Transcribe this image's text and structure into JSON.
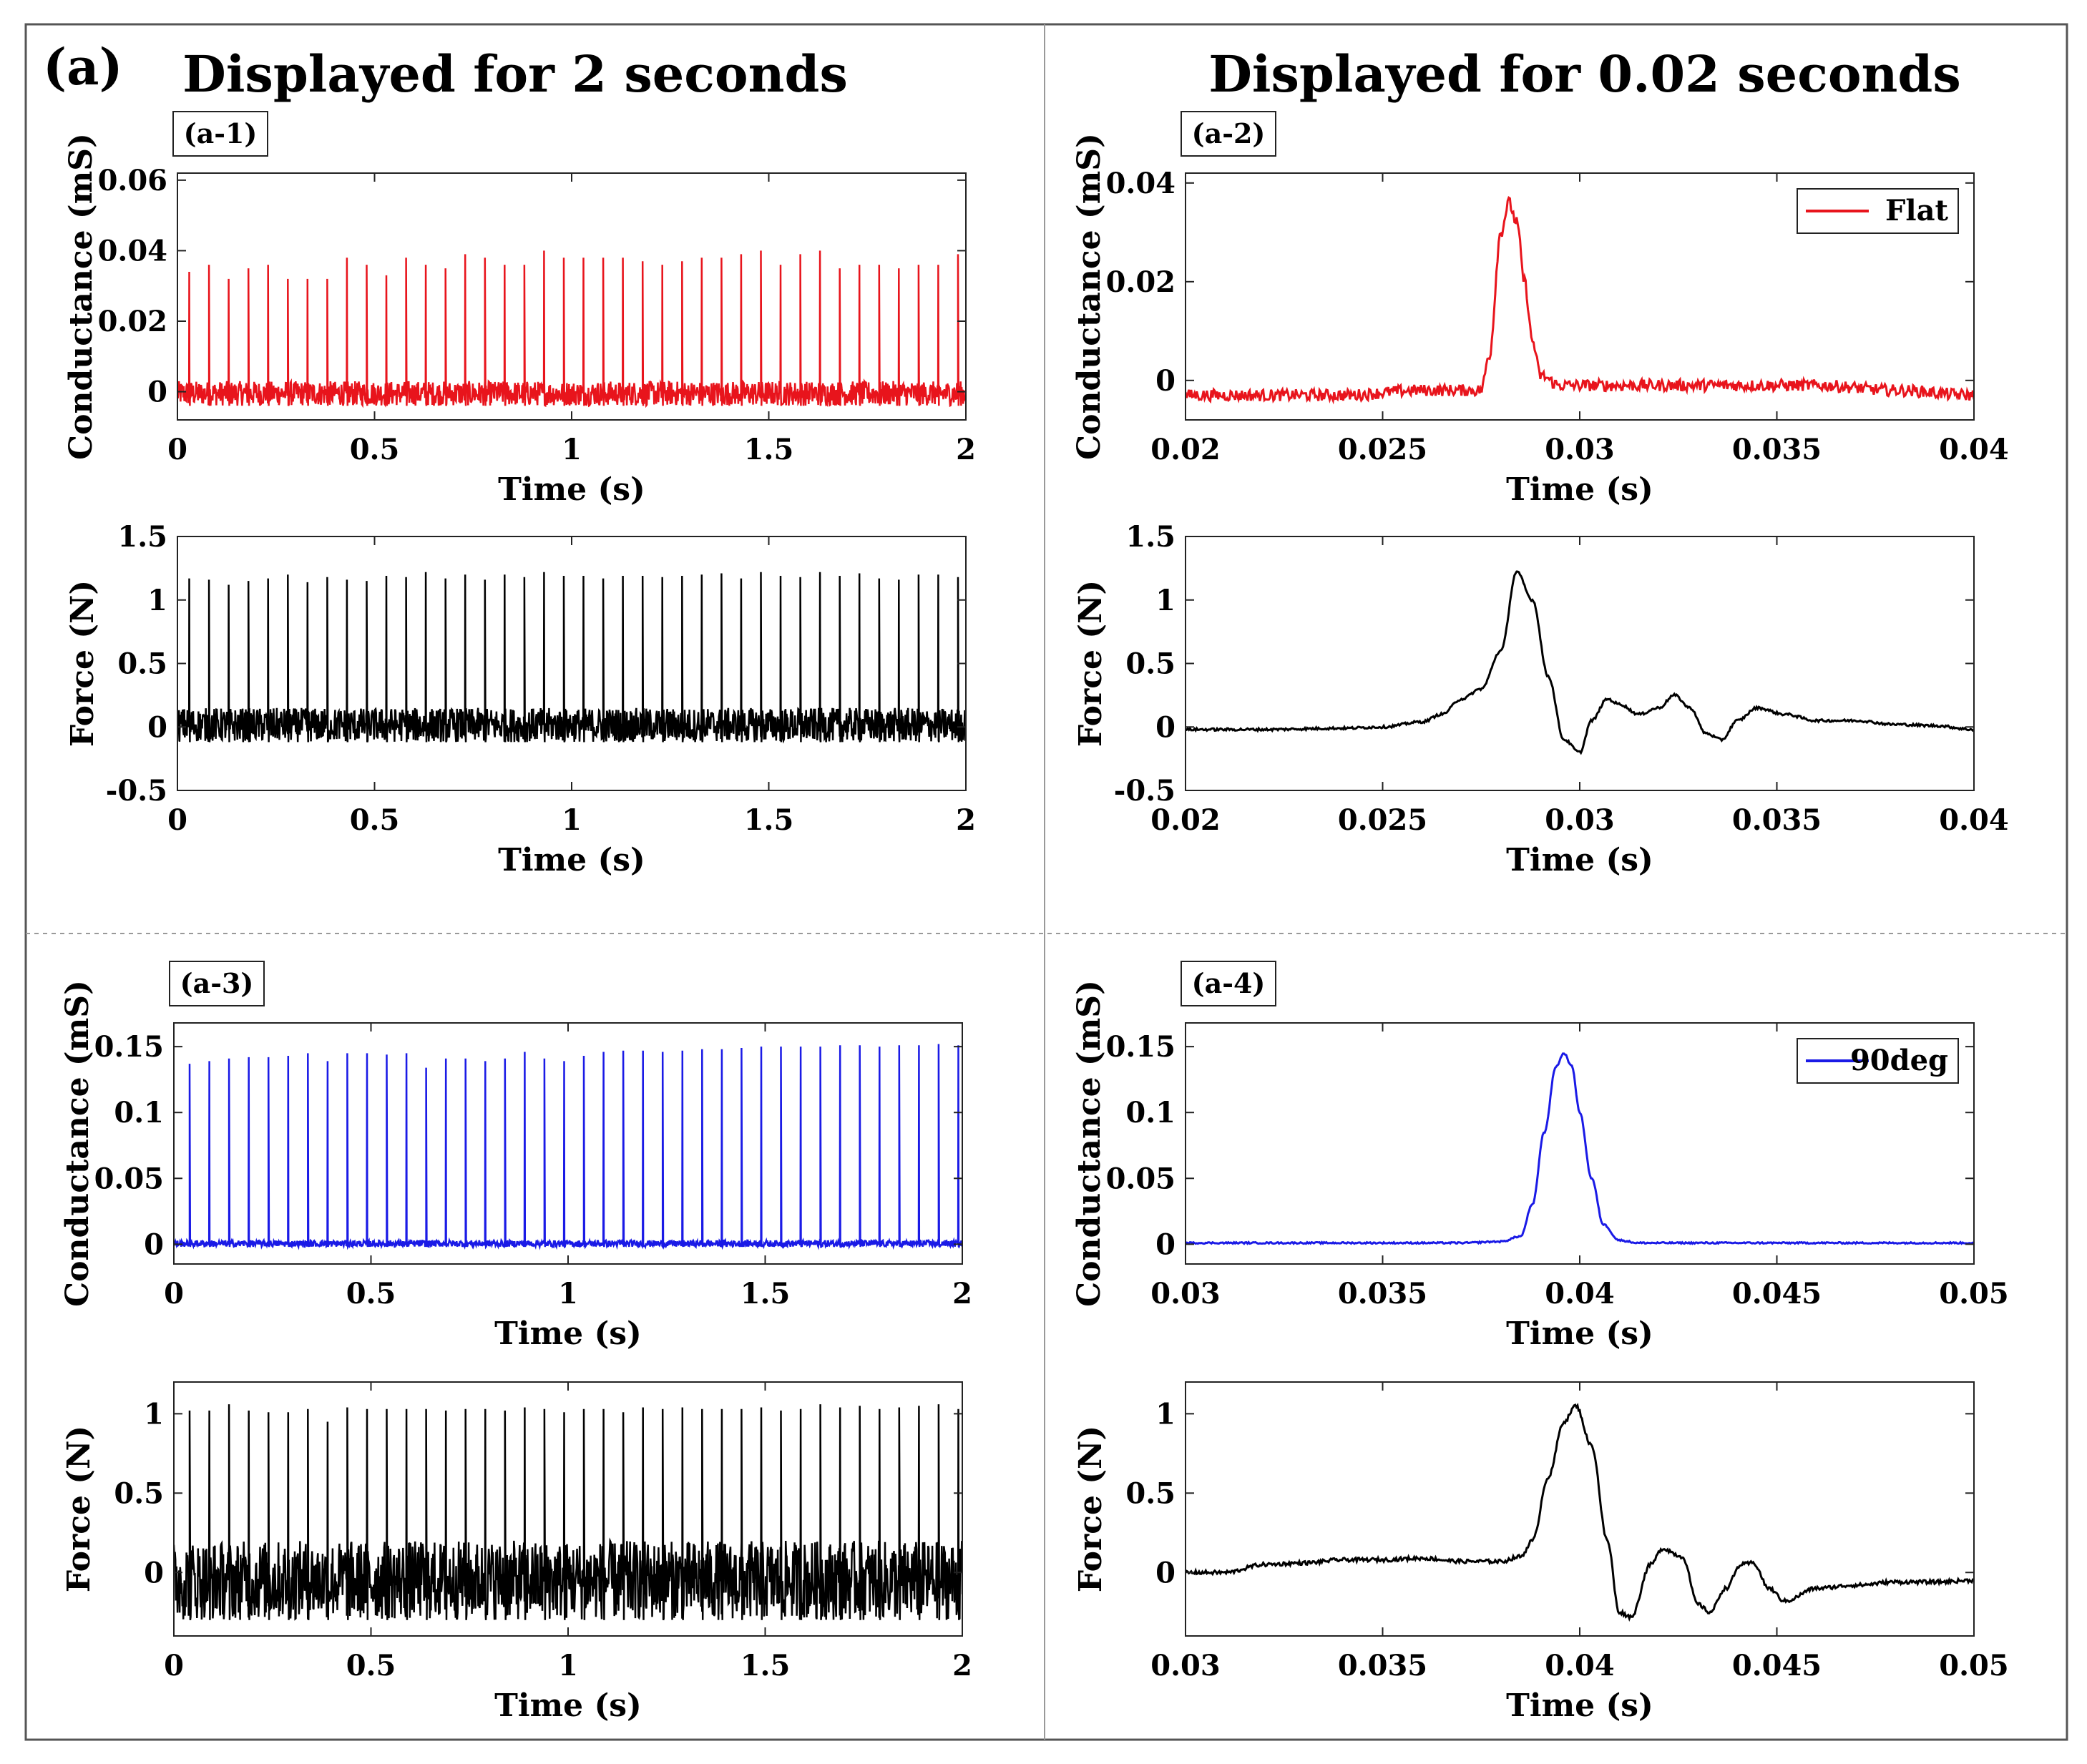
{
  "figure": {
    "panel_label": "(a)",
    "col_titles": [
      "Displayed for 2 seconds",
      "Displayed for 0.02 seconds"
    ],
    "colors": {
      "red": "#e8141c",
      "blue": "#1a1ae6",
      "black": "#000000",
      "frame": "#555555",
      "divider": "#999999"
    }
  },
  "chart_data": [
    {
      "id": "a1-cond",
      "tag": "(a-1)",
      "type": "line",
      "color": "#e8141c",
      "xlabel": "Time (s)",
      "ylabel": "Conductance (mS)",
      "xlim": [
        0,
        2
      ],
      "ylim": [
        -0.008,
        0.062
      ],
      "xticks": [
        0,
        0.5,
        1,
        1.5,
        2
      ],
      "xtick_labels": [
        "0",
        "0.5",
        "1",
        "1.5",
        "2"
      ],
      "yticks": [
        0,
        0.02,
        0.04,
        0.06
      ],
      "ytick_labels": [
        "0",
        "0.02",
        "0.04",
        "0.06"
      ],
      "noise_band": [
        -0.004,
        0.003
      ],
      "spike_times": [
        0.03,
        0.08,
        0.13,
        0.18,
        0.23,
        0.28,
        0.33,
        0.38,
        0.43,
        0.48,
        0.53,
        0.58,
        0.63,
        0.68,
        0.73,
        0.78,
        0.83,
        0.88,
        0.93,
        0.98,
        1.03,
        1.08,
        1.13,
        1.18,
        1.23,
        1.28,
        1.33,
        1.38,
        1.43,
        1.48,
        1.53,
        1.58,
        1.63,
        1.68,
        1.73,
        1.78,
        1.83,
        1.88,
        1.93,
        1.98
      ],
      "spike_peaks": [
        0.034,
        0.036,
        0.032,
        0.035,
        0.036,
        0.032,
        0.032,
        0.032,
        0.038,
        0.036,
        0.033,
        0.038,
        0.036,
        0.035,
        0.039,
        0.038,
        0.036,
        0.036,
        0.04,
        0.038,
        0.038,
        0.038,
        0.038,
        0.037,
        0.036,
        0.037,
        0.038,
        0.038,
        0.039,
        0.04,
        0.036,
        0.039,
        0.04,
        0.035,
        0.036,
        0.036,
        0.035,
        0.036,
        0.036,
        0.039
      ]
    },
    {
      "id": "a2-cond",
      "tag": "(a-2)",
      "type": "line",
      "color": "#e8141c",
      "xlabel": "Time (s)",
      "ylabel": "Conductance (mS)",
      "xlim": [
        0.02,
        0.04
      ],
      "ylim": [
        -0.008,
        0.042
      ],
      "xticks": [
        0.02,
        0.025,
        0.03,
        0.035,
        0.04
      ],
      "xtick_labels": [
        "0.02",
        "0.025",
        "0.03",
        "0.035",
        "0.04"
      ],
      "yticks": [
        0,
        0.02,
        0.04
      ],
      "ytick_labels": [
        "0",
        "0.02",
        "0.04"
      ],
      "legend": "Flat",
      "legend_position": "top-right",
      "curve": {
        "x": [
          0.02,
          0.022,
          0.024,
          0.026,
          0.027,
          0.0275,
          0.0277,
          0.028,
          0.0282,
          0.0284,
          0.0286,
          0.0288,
          0.029,
          0.0295,
          0.03,
          0.032,
          0.034,
          0.036,
          0.038,
          0.04
        ],
        "y": [
          -0.003,
          -0.003,
          -0.003,
          -0.002,
          -0.002,
          -0.002,
          0.005,
          0.03,
          0.036,
          0.032,
          0.02,
          0.008,
          0.001,
          -0.001,
          -0.001,
          -0.001,
          -0.001,
          -0.001,
          -0.002,
          -0.003
        ]
      },
      "noise": 0.0012
    },
    {
      "id": "a1-force",
      "tag": "",
      "type": "line",
      "color": "#000000",
      "xlabel": "Time (s)",
      "ylabel": "Force (N)",
      "xlim": [
        0,
        2
      ],
      "ylim": [
        -0.5,
        1.5
      ],
      "xticks": [
        0,
        0.5,
        1,
        1.5,
        2
      ],
      "xtick_labels": [
        "0",
        "0.5",
        "1",
        "1.5",
        "2"
      ],
      "yticks": [
        -0.5,
        0,
        0.5,
        1,
        1.5
      ],
      "ytick_labels": [
        "-0.5",
        "0",
        "0.5",
        "1",
        "1.5"
      ],
      "noise_band": [
        -0.12,
        0.15
      ],
      "spike_times": [
        0.03,
        0.08,
        0.13,
        0.18,
        0.23,
        0.28,
        0.33,
        0.38,
        0.43,
        0.48,
        0.53,
        0.58,
        0.63,
        0.68,
        0.73,
        0.78,
        0.83,
        0.88,
        0.93,
        0.98,
        1.03,
        1.08,
        1.13,
        1.18,
        1.23,
        1.28,
        1.33,
        1.38,
        1.43,
        1.48,
        1.53,
        1.58,
        1.63,
        1.68,
        1.73,
        1.78,
        1.83,
        1.88,
        1.93,
        1.98
      ],
      "spike_peaks": [
        1.17,
        1.16,
        1.12,
        1.15,
        1.17,
        1.2,
        1.14,
        1.18,
        1.16,
        1.15,
        1.19,
        1.18,
        1.22,
        1.17,
        1.2,
        1.16,
        1.2,
        1.18,
        1.22,
        1.19,
        1.19,
        1.17,
        1.19,
        1.19,
        1.18,
        1.19,
        1.2,
        1.21,
        1.17,
        1.22,
        1.19,
        1.18,
        1.22,
        1.19,
        1.21,
        1.17,
        1.16,
        1.2,
        1.2,
        1.18
      ]
    },
    {
      "id": "a2-force",
      "tag": "",
      "type": "line",
      "color": "#000000",
      "xlabel": "Time (s)",
      "ylabel": "Force (N)",
      "xlim": [
        0.02,
        0.04
      ],
      "ylim": [
        -0.5,
        1.5
      ],
      "xticks": [
        0.02,
        0.025,
        0.03,
        0.035,
        0.04
      ],
      "xtick_labels": [
        "0.02",
        "0.025",
        "0.03",
        "0.035",
        "0.04"
      ],
      "yticks": [
        -0.5,
        0,
        0.5,
        1,
        1.5
      ],
      "ytick_labels": [
        "-0.5",
        "0",
        "0.5",
        "1",
        "1.5"
      ],
      "curve": {
        "x": [
          0.02,
          0.022,
          0.024,
          0.025,
          0.026,
          0.0265,
          0.027,
          0.0275,
          0.028,
          0.0284,
          0.0288,
          0.0292,
          0.0296,
          0.03,
          0.0303,
          0.0307,
          0.031,
          0.0315,
          0.032,
          0.0324,
          0.0328,
          0.0332,
          0.0336,
          0.034,
          0.0345,
          0.0352,
          0.036,
          0.037,
          0.038,
          0.039,
          0.04
        ],
        "y": [
          -0.02,
          -0.02,
          -0.01,
          0.0,
          0.04,
          0.1,
          0.22,
          0.3,
          0.6,
          1.22,
          1.0,
          0.4,
          -0.1,
          -0.2,
          0.05,
          0.22,
          0.18,
          0.1,
          0.15,
          0.25,
          0.15,
          -0.05,
          -0.1,
          0.05,
          0.15,
          0.1,
          0.05,
          0.05,
          0.02,
          0.01,
          -0.02
        ]
      },
      "noise": 0.01
    },
    {
      "id": "a3-cond",
      "tag": "(a-3)",
      "type": "line",
      "color": "#1a1ae6",
      "xlabel": "Time (s)",
      "ylabel": "Conductance (mS)",
      "xlim": [
        0,
        2
      ],
      "ylim": [
        -0.015,
        0.168
      ],
      "xticks": [
        0,
        0.5,
        1,
        1.5,
        2
      ],
      "xtick_labels": [
        "0",
        "0.5",
        "1",
        "1.5",
        "2"
      ],
      "yticks": [
        0,
        0.05,
        0.1,
        0.15
      ],
      "ytick_labels": [
        "0",
        "0.05",
        "0.1",
        "0.15"
      ],
      "noise_band": [
        -0.002,
        0.003
      ],
      "spike_times": [
        0.04,
        0.09,
        0.14,
        0.19,
        0.24,
        0.29,
        0.34,
        0.39,
        0.44,
        0.49,
        0.54,
        0.59,
        0.64,
        0.69,
        0.74,
        0.79,
        0.84,
        0.89,
        0.94,
        0.99,
        1.04,
        1.09,
        1.14,
        1.19,
        1.24,
        1.29,
        1.34,
        1.39,
        1.44,
        1.49,
        1.54,
        1.59,
        1.64,
        1.69,
        1.74,
        1.79,
        1.84,
        1.89,
        1.94,
        1.99
      ],
      "spike_peaks": [
        0.137,
        0.139,
        0.141,
        0.142,
        0.142,
        0.143,
        0.145,
        0.139,
        0.145,
        0.145,
        0.144,
        0.145,
        0.134,
        0.141,
        0.141,
        0.139,
        0.141,
        0.146,
        0.141,
        0.139,
        0.143,
        0.146,
        0.147,
        0.147,
        0.146,
        0.147,
        0.148,
        0.148,
        0.149,
        0.15,
        0.15,
        0.15,
        0.15,
        0.151,
        0.151,
        0.15,
        0.151,
        0.151,
        0.152,
        0.151
      ]
    },
    {
      "id": "a4-cond",
      "tag": "(a-4)",
      "type": "line",
      "color": "#1a1ae6",
      "xlabel": "Time (s)",
      "ylabel": "Conductance (mS)",
      "xlim": [
        0.03,
        0.05
      ],
      "ylim": [
        -0.015,
        0.168
      ],
      "xticks": [
        0.03,
        0.035,
        0.04,
        0.045,
        0.05
      ],
      "xtick_labels": [
        "0.03",
        "0.035",
        "0.04",
        "0.045",
        "0.05"
      ],
      "yticks": [
        0,
        0.05,
        0.1,
        0.15
      ],
      "ytick_labels": [
        "0",
        "0.05",
        "0.1",
        "0.15"
      ],
      "legend": "90deg",
      "legend_position": "top-right",
      "curve": {
        "x": [
          0.03,
          0.034,
          0.037,
          0.038,
          0.0385,
          0.0388,
          0.0391,
          0.0394,
          0.0396,
          0.0398,
          0.04,
          0.0403,
          0.0406,
          0.041,
          0.0415,
          0.043,
          0.046,
          0.05
        ],
        "y": [
          0.001,
          0.001,
          0.001,
          0.002,
          0.006,
          0.03,
          0.085,
          0.135,
          0.145,
          0.135,
          0.1,
          0.05,
          0.015,
          0.003,
          0.001,
          0.001,
          0.001,
          0.001
        ]
      },
      "noise": 0.0006
    },
    {
      "id": "a3-force",
      "tag": "",
      "type": "line",
      "color": "#000000",
      "xlabel": "Time (s)",
      "ylabel": "Force (N)",
      "xlim": [
        0,
        2
      ],
      "ylim": [
        -0.4,
        1.2
      ],
      "xticks": [
        0,
        0.5,
        1,
        1.5,
        2
      ],
      "xtick_labels": [
        "0",
        "0.5",
        "1",
        "1.5",
        "2"
      ],
      "yticks": [
        0,
        0.5,
        1
      ],
      "ytick_labels": [
        "0",
        "0.5",
        "1"
      ],
      "noise_band": [
        -0.3,
        0.2
      ],
      "spike_times": [
        0.04,
        0.09,
        0.14,
        0.19,
        0.24,
        0.29,
        0.34,
        0.39,
        0.44,
        0.49,
        0.54,
        0.59,
        0.64,
        0.69,
        0.74,
        0.79,
        0.84,
        0.89,
        0.94,
        0.99,
        1.04,
        1.09,
        1.14,
        1.19,
        1.24,
        1.29,
        1.34,
        1.39,
        1.44,
        1.49,
        1.54,
        1.59,
        1.64,
        1.69,
        1.74,
        1.79,
        1.84,
        1.89,
        1.94,
        1.99
      ],
      "spike_peaks": [
        1.02,
        1.02,
        1.06,
        1.02,
        1.01,
        1.01,
        1.03,
        0.95,
        1.04,
        1.03,
        1.03,
        1.03,
        1.03,
        1.02,
        1.03,
        1.03,
        1.02,
        1.04,
        1.03,
        1.01,
        1.03,
        1.03,
        1.01,
        1.04,
        1.03,
        1.04,
        1.03,
        1.03,
        1.03,
        1.04,
        1.02,
        1.03,
        1.06,
        1.04,
        1.05,
        1.03,
        1.04,
        1.05,
        1.06,
        1.03
      ]
    },
    {
      "id": "a4-force",
      "tag": "",
      "type": "line",
      "color": "#000000",
      "xlabel": "Time (s)",
      "ylabel": "Force (N)",
      "xlim": [
        0.03,
        0.05
      ],
      "ylim": [
        -0.4,
        1.2
      ],
      "xticks": [
        0.03,
        0.035,
        0.04,
        0.045,
        0.05
      ],
      "xtick_labels": [
        "0.03",
        "0.035",
        "0.04",
        "0.045",
        "0.05"
      ],
      "yticks": [
        0,
        0.5,
        1
      ],
      "ytick_labels": [
        "0",
        "0.5",
        "1"
      ],
      "curve": {
        "x": [
          0.03,
          0.031,
          0.032,
          0.033,
          0.034,
          0.035,
          0.036,
          0.037,
          0.038,
          0.0385,
          0.0388,
          0.0392,
          0.0396,
          0.0399,
          0.0403,
          0.0407,
          0.041,
          0.0413,
          0.0418,
          0.0421,
          0.0426,
          0.043,
          0.0433,
          0.0437,
          0.0441,
          0.0444,
          0.0448,
          0.0452,
          0.046,
          0.047,
          0.048,
          0.049,
          0.05
        ],
        "y": [
          0.0,
          0.0,
          0.05,
          0.06,
          0.08,
          0.08,
          0.09,
          0.07,
          0.07,
          0.1,
          0.2,
          0.6,
          0.95,
          1.05,
          0.8,
          0.2,
          -0.25,
          -0.28,
          0.05,
          0.15,
          0.1,
          -0.2,
          -0.25,
          -0.1,
          0.05,
          0.06,
          -0.1,
          -0.18,
          -0.1,
          -0.08,
          -0.06,
          -0.06,
          -0.05
        ]
      },
      "noise": 0.012
    }
  ]
}
